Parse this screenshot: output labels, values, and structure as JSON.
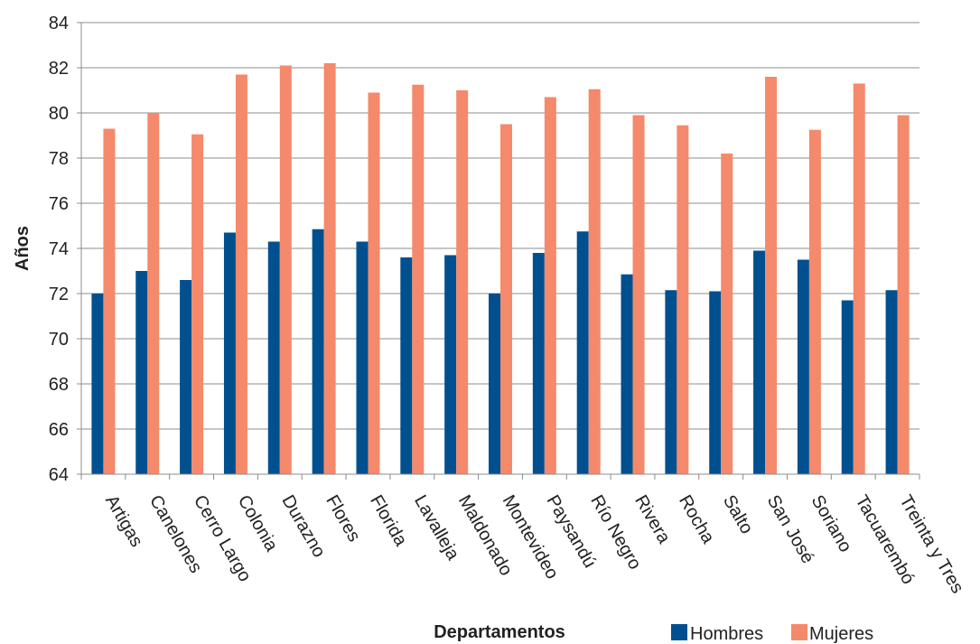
{
  "chart_data": {
    "type": "bar",
    "title": "",
    "xlabel": "Departamentos",
    "ylabel": "Años",
    "ylim": [
      64,
      84
    ],
    "yticks": [
      64,
      66,
      68,
      70,
      72,
      74,
      76,
      78,
      80,
      82,
      84
    ],
    "grid": true,
    "legend_position": "bottom-right",
    "categories": [
      "Artigas",
      "Canelones",
      "Cerro Largo",
      "Colonia",
      "Durazno",
      "Flores",
      "Florida",
      "Lavalleja",
      "Maldonado",
      "Montevideo",
      "Paysandú",
      "Río Negro",
      "Rivera",
      "Rocha",
      "Salto",
      "San José",
      "Soriano",
      "Tacuarembó",
      "Treinta y Tres"
    ],
    "series": [
      {
        "name": "Hombres",
        "color": "#00508f",
        "values": [
          72.0,
          73.0,
          72.6,
          74.7,
          74.3,
          74.85,
          74.3,
          73.6,
          73.7,
          72.0,
          73.8,
          74.75,
          72.85,
          72.15,
          72.1,
          73.9,
          73.5,
          71.7,
          72.15
        ]
      },
      {
        "name": "Mujeres",
        "color": "#f5896b",
        "values": [
          79.3,
          80.0,
          79.05,
          81.7,
          82.1,
          82.2,
          80.9,
          81.25,
          81.0,
          79.5,
          80.7,
          81.05,
          79.9,
          79.45,
          78.2,
          81.6,
          79.25,
          81.3,
          79.9
        ]
      }
    ]
  }
}
